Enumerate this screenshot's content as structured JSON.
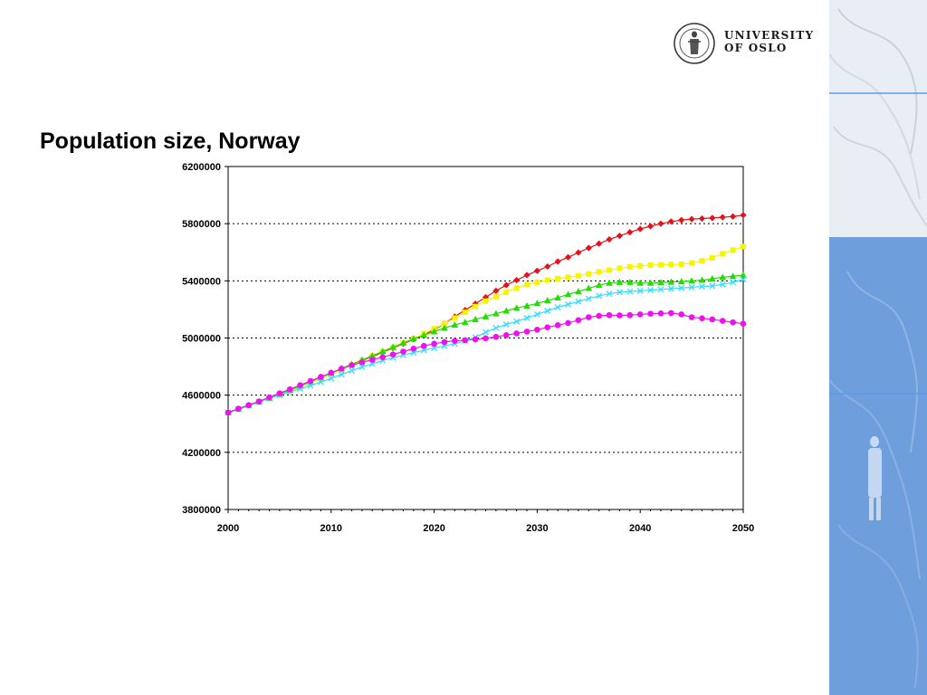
{
  "slide": {
    "title": "Population size, Norway",
    "logo_line1": "UNIVERSITY",
    "logo_line2": "OF OSLO"
  },
  "colors": {
    "panel_light": "#e9eef4",
    "panel_blue": "#6f9edc",
    "panel_line": "#5b9be8"
  },
  "chart_data": {
    "type": "line",
    "title": "",
    "xlabel": "",
    "ylabel": "",
    "xlim": [
      2000,
      2050
    ],
    "ylim": [
      3800000,
      6200000
    ],
    "x_ticks": [
      2000,
      2010,
      2020,
      2030,
      2040,
      2050
    ],
    "y_ticks": [
      3800000,
      4200000,
      4600000,
      5000000,
      5400000,
      5800000,
      6200000
    ],
    "grid": "horizontal dotted",
    "x": [
      2000,
      2001,
      2002,
      2003,
      2004,
      2005,
      2006,
      2007,
      2008,
      2009,
      2010,
      2011,
      2012,
      2013,
      2014,
      2015,
      2016,
      2017,
      2018,
      2019,
      2020,
      2021,
      2022,
      2023,
      2024,
      2025,
      2026,
      2027,
      2028,
      2029,
      2030,
      2031,
      2032,
      2033,
      2034,
      2035,
      2036,
      2037,
      2038,
      2039,
      2040,
      2041,
      2042,
      2043,
      2044,
      2045,
      2046,
      2047,
      2048,
      2049,
      2050
    ],
    "series": [
      {
        "color": "#e8101a",
        "marker": "diamond",
        "values": [
          4478000,
          4505000,
          4530000,
          4556000,
          4583000,
          4612000,
          4640000,
          4668000,
          4697000,
          4726000,
          4756000,
          4785000,
          4814000,
          4842000,
          4870000,
          4900000,
          4930000,
          4960000,
          4990000,
          5022000,
          5058000,
          5100000,
          5150000,
          5195000,
          5240000,
          5285000,
          5330000,
          5370000,
          5405000,
          5440000,
          5470000,
          5500000,
          5535000,
          5565000,
          5598000,
          5630000,
          5660000,
          5690000,
          5715000,
          5740000,
          5763000,
          5782000,
          5800000,
          5815000,
          5825000,
          5832000,
          5836000,
          5840000,
          5845000,
          5850000,
          5860000
        ]
      },
      {
        "color": "#f5f500",
        "marker": "square",
        "values": [
          4478000,
          4503000,
          4528000,
          4553000,
          4578000,
          4603000,
          4628000,
          4655000,
          4685000,
          4715000,
          4745000,
          4778000,
          4810000,
          4845000,
          4875000,
          4905000,
          4935000,
          4965000,
          4995000,
          5030000,
          5065000,
          5100000,
          5140000,
          5180000,
          5220000,
          5258000,
          5290000,
          5320000,
          5350000,
          5375000,
          5390000,
          5405000,
          5415000,
          5425000,
          5435000,
          5448000,
          5462000,
          5475000,
          5488000,
          5498000,
          5505000,
          5510000,
          5512000,
          5514000,
          5516000,
          5525000,
          5540000,
          5560000,
          5590000,
          5615000,
          5640000
        ]
      },
      {
        "color": "#22dd00",
        "marker": "triangle",
        "values": [
          4478000,
          4503000,
          4528000,
          4554000,
          4580000,
          4608000,
          4636000,
          4664000,
          4694000,
          4724000,
          4756000,
          4786000,
          4816000,
          4846000,
          4876000,
          4906000,
          4936000,
          4966000,
          4995000,
          5020000,
          5045000,
          5070000,
          5092000,
          5110000,
          5130000,
          5150000,
          5170000,
          5190000,
          5210000,
          5225000,
          5242000,
          5262000,
          5282000,
          5305000,
          5325000,
          5348000,
          5370000,
          5385000,
          5390000,
          5390000,
          5385000,
          5385000,
          5388000,
          5392000,
          5395000,
          5400000,
          5405000,
          5415000,
          5425000,
          5432000,
          5440000
        ]
      },
      {
        "color": "#33ddff",
        "marker": "x",
        "values": [
          4478000,
          4502000,
          4527000,
          4552000,
          4577000,
          4600000,
          4622000,
          4645000,
          4668000,
          4692000,
          4718000,
          4745000,
          4772000,
          4797000,
          4820000,
          4842000,
          4862000,
          4880000,
          4898000,
          4915000,
          4930000,
          4945000,
          4960000,
          4980000,
          5005000,
          5040000,
          5070000,
          5095000,
          5115000,
          5140000,
          5165000,
          5190000,
          5215000,
          5235000,
          5255000,
          5275000,
          5295000,
          5310000,
          5320000,
          5325000,
          5330000,
          5335000,
          5340000,
          5345000,
          5350000,
          5355000,
          5360000,
          5365000,
          5375000,
          5390000,
          5410000
        ]
      },
      {
        "color": "#ee11ee",
        "marker": "circle",
        "values": [
          4478000,
          4505000,
          4530000,
          4556000,
          4585000,
          4613000,
          4641000,
          4670000,
          4699000,
          4728000,
          4757000,
          4785000,
          4810000,
          4830000,
          4848000,
          4866000,
          4885000,
          4905000,
          4925000,
          4945000,
          4960000,
          4972000,
          4980000,
          4985000,
          4990000,
          4998000,
          5008000,
          5020000,
          5032000,
          5045000,
          5058000,
          5075000,
          5090000,
          5105000,
          5125000,
          5145000,
          5155000,
          5160000,
          5158000,
          5160000,
          5165000,
          5170000,
          5172000,
          5175000,
          5165000,
          5145000,
          5138000,
          5130000,
          5120000,
          5110000,
          5100000
        ]
      }
    ]
  }
}
